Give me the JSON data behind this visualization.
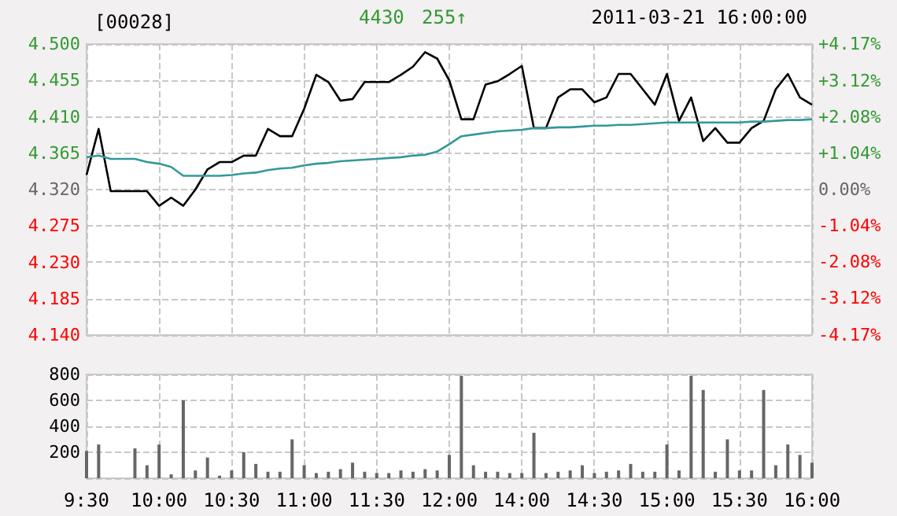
{
  "chart_data": [
    {
      "type": "line",
      "title": "[00028]",
      "annotations": [
        "4430",
        "255↑",
        "2011-03-21 16:00:00"
      ],
      "categories": [
        null,
        null,
        null,
        null,
        null,
        null,
        null,
        null,
        null,
        null,
        null,
        null,
        null,
        null,
        null,
        null,
        null,
        null,
        null,
        null,
        null,
        null,
        null,
        null,
        null,
        null,
        null,
        null,
        null,
        null,
        null,
        null,
        null,
        null,
        null,
        null,
        null,
        null,
        null,
        null,
        null,
        null,
        null,
        null,
        null,
        null,
        null,
        null,
        null,
        null,
        null,
        null,
        null,
        null,
        null,
        null,
        null,
        null,
        null,
        null,
        null
      ],
      "series": [
        {
          "color": "#000000",
          "values": [
            4.338,
            4.395,
            4.318,
            4.318,
            4.318,
            4.318,
            4.3,
            4.31,
            4.3,
            4.32,
            4.345,
            4.354,
            4.354,
            4.362,
            4.362,
            4.395,
            4.386,
            4.386,
            4.42,
            4.462,
            4.453,
            4.43,
            4.432,
            4.453,
            4.453,
            4.453,
            4.462,
            4.472,
            4.49,
            4.482,
            4.455,
            4.407,
            4.407,
            4.45,
            4.454,
            4.463,
            4.473,
            4.396,
            4.396,
            4.434,
            4.444,
            4.444,
            4.428,
            4.434,
            4.463,
            4.463,
            4.444,
            4.425,
            4.463,
            4.405,
            4.434,
            4.38,
            4.396,
            4.378,
            4.378,
            4.396,
            4.405,
            4.444,
            4.463,
            4.434,
            4.425
          ]
        },
        {
          "color": "#339999",
          "values": [
            4.36,
            4.362,
            4.358,
            4.358,
            4.358,
            4.354,
            4.352,
            4.348,
            4.337,
            4.337,
            4.337,
            4.337,
            4.338,
            4.34,
            4.341,
            4.344,
            4.346,
            4.347,
            4.35,
            4.352,
            4.353,
            4.355,
            4.356,
            4.357,
            4.358,
            4.359,
            4.36,
            4.362,
            4.363,
            4.367,
            4.376,
            4.386,
            4.388,
            4.39,
            4.392,
            4.393,
            4.394,
            4.396,
            4.396,
            4.397,
            4.397,
            4.398,
            4.399,
            4.399,
            4.4,
            4.4,
            4.401,
            4.402,
            4.403,
            4.403,
            4.403,
            4.403,
            4.403,
            4.403,
            4.403,
            4.404,
            4.404,
            4.405,
            4.406,
            4.406,
            4.407
          ]
        }
      ],
      "ylim": [
        4.14,
        4.5
      ],
      "yticks": [
        {
          "value": 4.14,
          "label": "4.140"
        },
        {
          "value": 4.185,
          "label": "4.185"
        },
        {
          "value": 4.23,
          "label": "4.230"
        },
        {
          "value": 4.275,
          "label": "4.275"
        },
        {
          "value": 4.32,
          "label": "4.320"
        },
        {
          "value": 4.365,
          "label": "4.365"
        },
        {
          "value": 4.41,
          "label": "4.410"
        },
        {
          "value": 4.455,
          "label": "4.455"
        },
        {
          "value": 4.5,
          "label": "4.500"
        }
      ],
      "y2lim": [
        -4.17,
        4.17
      ],
      "y2ticks": [
        {
          "value": -4.17,
          "label": "-4.17%"
        },
        {
          "value": -3.12,
          "label": "-3.12%"
        },
        {
          "value": -2.08,
          "label": "-2.08%"
        },
        {
          "value": -1.04,
          "label": "-1.04%"
        },
        {
          "value": 0,
          "label": "0.00%"
        },
        {
          "value": 1.04,
          "label": "+1.04%"
        },
        {
          "value": 2.08,
          "label": "+2.08%"
        },
        {
          "value": 3.12,
          "label": "+3.12%"
        },
        {
          "value": 4.17,
          "label": "+4.17%"
        }
      ],
      "grid": true,
      "tick_labels": "y"
    },
    {
      "type": "bar",
      "categories": [
        "9:30",
        null,
        null,
        null,
        null,
        null,
        "10:00",
        null,
        null,
        null,
        null,
        null,
        "10:30",
        null,
        null,
        null,
        null,
        null,
        "11:00",
        null,
        null,
        null,
        null,
        null,
        "11:30",
        null,
        null,
        null,
        null,
        null,
        "12:00",
        null,
        null,
        null,
        null,
        null,
        "14:00",
        null,
        null,
        null,
        null,
        null,
        "14:30",
        null,
        null,
        null,
        null,
        null,
        "15:00",
        null,
        null,
        null,
        null,
        null,
        "15:30",
        null,
        null,
        null,
        null,
        null,
        "16:00"
      ],
      "color": "#666666",
      "values": [
        210,
        260,
        null,
        null,
        230,
        100,
        260,
        30,
        600,
        60,
        160,
        20,
        60,
        200,
        110,
        50,
        50,
        300,
        100,
        40,
        50,
        70,
        120,
        50,
        40,
        40,
        60,
        50,
        70,
        60,
        180,
        790,
        100,
        50,
        50,
        40,
        40,
        350,
        40,
        50,
        60,
        100,
        40,
        50,
        60,
        110,
        50,
        50,
        260,
        60,
        790,
        680,
        50,
        300,
        60,
        60,
        680,
        100,
        260,
        180,
        120
      ],
      "ylim": [
        0,
        800
      ],
      "yticks": [
        {
          "value": 0,
          "label": null
        },
        200,
        400,
        600,
        800
      ],
      "grid": true
    }
  ]
}
